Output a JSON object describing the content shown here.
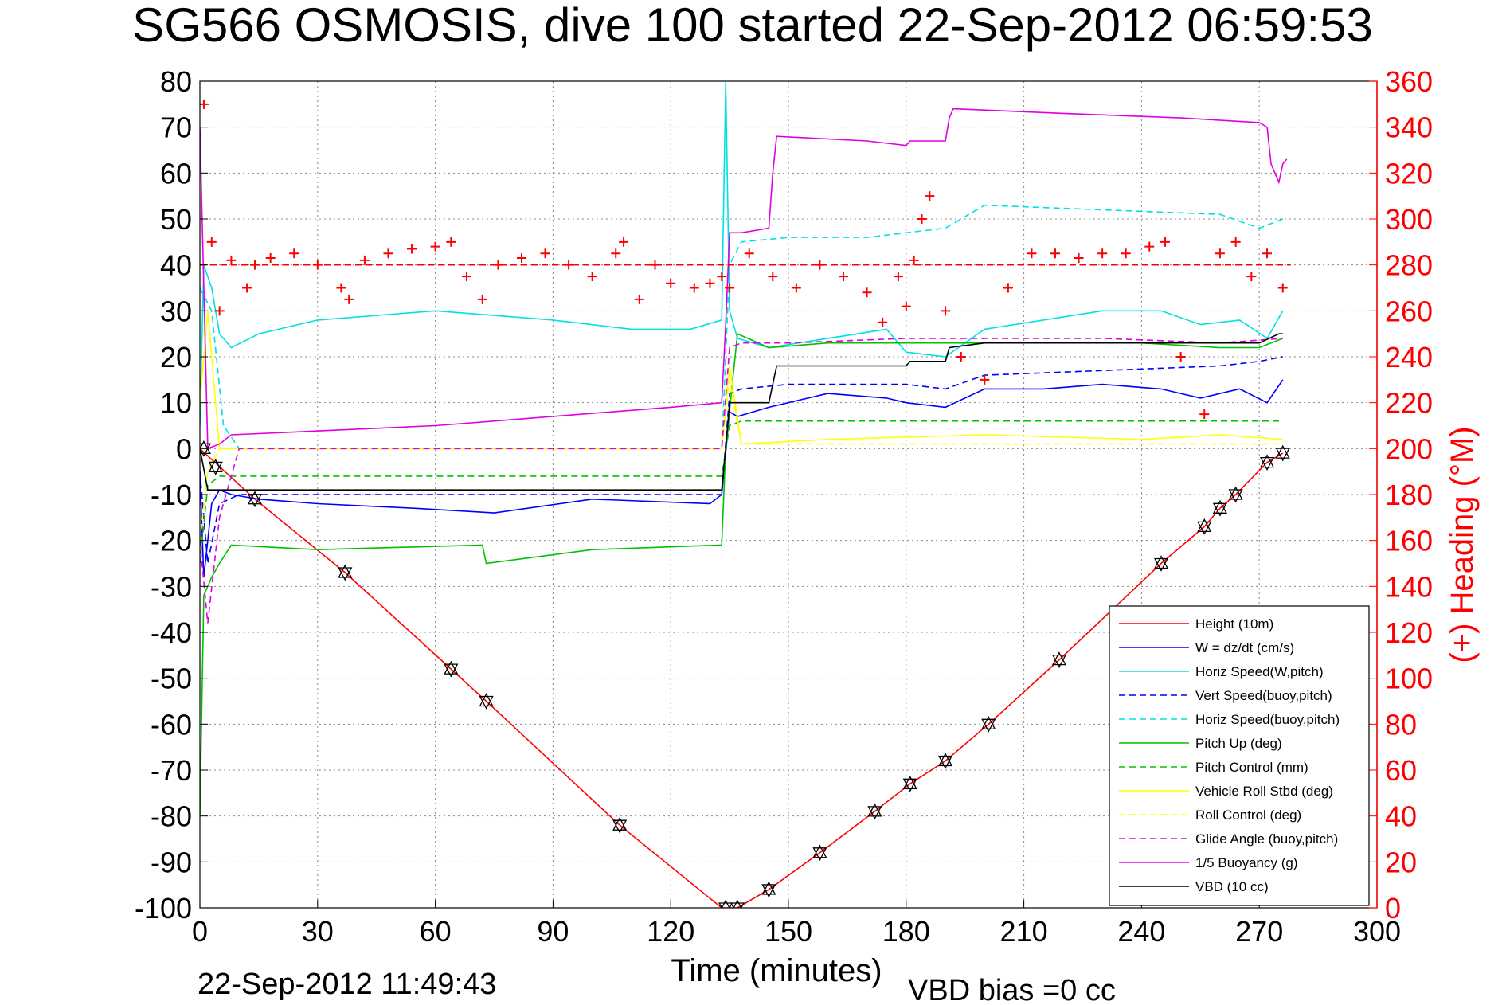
{
  "chart_data": {
    "type": "line",
    "title": "SG566 OSMOSIS, dive 100 started 22-Sep-2012 06:59:53",
    "xlabel": "Time (minutes)",
    "ylabel_right": "(+) Heading (°M)",
    "xlim": [
      0,
      300
    ],
    "ylim": [
      -100,
      80
    ],
    "ylim_right": [
      0,
      360
    ],
    "grid": true,
    "legend_position": "bottom-right",
    "x_ticks": [
      "0",
      "30",
      "60",
      "90",
      "120",
      "150",
      "180",
      "210",
      "240",
      "270",
      "300"
    ],
    "y_ticks": [
      "80",
      "70",
      "60",
      "50",
      "40",
      "30",
      "20",
      "10",
      "0",
      "-10",
      "-20",
      "-30",
      "-40",
      "-50",
      "-60",
      "-70",
      "-80",
      "-90",
      "-100"
    ],
    "y_ticks_right": [
      "360",
      "340",
      "320",
      "300",
      "280",
      "260",
      "240",
      "220",
      "200",
      "180",
      "160",
      "140",
      "120",
      "100",
      "80",
      "60",
      "40",
      "20",
      "0"
    ],
    "footer_left": "22-Sep-2012 11:49:43",
    "footer_right": "VBD bias =0 cc",
    "series": [
      {
        "name": "Height (10m)",
        "color": "#ff0000",
        "style": "solid",
        "x": [
          0,
          14,
          37,
          64,
          73,
          107,
          133,
          137,
          145,
          158,
          172,
          181,
          190,
          201,
          219,
          245,
          256,
          260,
          264,
          272,
          276
        ],
        "y": [
          0,
          -11,
          -27,
          -48,
          -55,
          -82,
          -100,
          -100,
          -96,
          -88,
          -79,
          -73,
          -68,
          -60,
          -46,
          -25,
          -17,
          -13,
          -10,
          -3,
          -1
        ]
      },
      {
        "name": "W = dz/dt (cm/s)",
        "color": "#0000ff",
        "style": "solid",
        "x": [
          0,
          1,
          2,
          3,
          5,
          8,
          15,
          30,
          55,
          75,
          100,
          130,
          133,
          135,
          137,
          145,
          160,
          175,
          180,
          190,
          200,
          215,
          230,
          245,
          255,
          265,
          272,
          276
        ],
        "y": [
          -5,
          -28,
          -20,
          -12,
          -9,
          -10,
          -11,
          -12,
          -13,
          -14,
          -11,
          -12,
          -10,
          8,
          7,
          9,
          12,
          11,
          10,
          9,
          13,
          13,
          14,
          13,
          11,
          13,
          10,
          15
        ]
      },
      {
        "name": "Horiz Speed(W,pitch)",
        "color": "#00e0e0",
        "style": "solid",
        "x": [
          0,
          1,
          3,
          5,
          8,
          15,
          30,
          60,
          90,
          110,
          125,
          133,
          134,
          135,
          137,
          145,
          160,
          175,
          180,
          190,
          200,
          215,
          230,
          245,
          255,
          265,
          272,
          276
        ],
        "y": [
          5,
          40,
          35,
          25,
          22,
          25,
          28,
          30,
          28,
          26,
          26,
          28,
          80,
          30,
          24,
          22,
          24,
          26,
          21,
          20,
          26,
          28,
          30,
          30,
          27,
          28,
          24,
          30
        ]
      },
      {
        "name": "Vert Speed(buoy,pitch)",
        "color": "#0000ff",
        "style": "dashed",
        "x": [
          0,
          2,
          5,
          10,
          133,
          135,
          138,
          150,
          180,
          190,
          200,
          230,
          260,
          270,
          276
        ],
        "y": [
          -5,
          -25,
          -12,
          -10,
          -10,
          12,
          13,
          14,
          14,
          13,
          16,
          17,
          18,
          19,
          20
        ]
      },
      {
        "name": "Horiz Speed(buoy,pitch)",
        "color": "#00e0e0",
        "style": "dashed",
        "x": [
          0,
          3,
          6,
          10,
          133,
          135,
          138,
          150,
          170,
          180,
          190,
          200,
          230,
          260,
          270,
          276
        ],
        "y": [
          35,
          30,
          5,
          0,
          0,
          40,
          45,
          46,
          46,
          47,
          48,
          53,
          52,
          51,
          48,
          50
        ]
      },
      {
        "name": "Pitch Up (deg)",
        "color": "#00c000",
        "style": "solid",
        "x": [
          0,
          1,
          3,
          5,
          8,
          30,
          72,
          73,
          100,
          133,
          134,
          137,
          145,
          160,
          180,
          190,
          220,
          240,
          260,
          270,
          276
        ],
        "y": [
          -80,
          -32,
          -28,
          -25,
          -21,
          -22,
          -21,
          -25,
          -22,
          -21,
          0,
          25,
          22,
          23,
          23,
          23,
          23,
          23,
          22,
          22,
          24
        ]
      },
      {
        "name": "Pitch Control (mm)",
        "color": "#00c000",
        "style": "dashed",
        "x": [
          0,
          2,
          5,
          20,
          60,
          80,
          133,
          135,
          138,
          160,
          180,
          200,
          230,
          260,
          276
        ],
        "y": [
          -25,
          -8,
          -6,
          -6,
          -6,
          -6,
          -6,
          5,
          6,
          6,
          6,
          6,
          6,
          6,
          6
        ]
      },
      {
        "name": "Vehicle Roll Stbd (deg)",
        "color": "#ffff00",
        "style": "solid",
        "x": [
          0,
          2,
          5,
          10,
          60,
          100,
          133,
          135,
          138,
          160,
          200,
          240,
          260,
          276
        ],
        "y": [
          10,
          30,
          0,
          0,
          0,
          0,
          0,
          18,
          1,
          2,
          3,
          2,
          3,
          2
        ]
      },
      {
        "name": "Roll Control (deg)",
        "color": "#ffff00",
        "style": "dashed",
        "x": [
          0,
          2,
          5,
          10,
          133,
          135,
          138,
          276
        ],
        "y": [
          -20,
          -5,
          0,
          0,
          0,
          15,
          1,
          1
        ]
      },
      {
        "name": "Glide Angle (buoy,pitch)",
        "color": "#e000e0",
        "style": "dashed",
        "x": [
          0,
          2,
          5,
          10,
          133,
          135,
          138,
          150,
          180,
          200,
          230,
          260,
          276
        ],
        "y": [
          -20,
          -38,
          -15,
          0,
          0,
          22,
          23,
          23,
          24,
          24,
          24,
          23,
          24
        ]
      },
      {
        "name": "1/5 Buoyancy (g)",
        "color": "#e000e0",
        "style": "solid",
        "x": [
          0,
          2,
          5,
          8,
          60,
          120,
          133,
          134,
          135,
          138,
          145,
          146,
          147,
          170,
          180,
          181,
          190,
          191,
          192,
          220,
          250,
          270,
          272,
          273,
          275,
          276,
          277
        ],
        "y": [
          70,
          0,
          1,
          3,
          5,
          9,
          10,
          27,
          47,
          47,
          48,
          60,
          68,
          67,
          66,
          67,
          67,
          72,
          74,
          73,
          72,
          71,
          70,
          62,
          58,
          62,
          63
        ]
      },
      {
        "name": "VBD (10 cc)",
        "color": "#000000",
        "style": "solid",
        "x": [
          0,
          2,
          5,
          20,
          100,
          133,
          134,
          135,
          137,
          145,
          147,
          160,
          180,
          181,
          190,
          191,
          200,
          250,
          270,
          275,
          276
        ],
        "y": [
          0,
          -9,
          -9,
          -9,
          -9,
          -9,
          0,
          10,
          10,
          10,
          18,
          18,
          18,
          19,
          19,
          22,
          23,
          23,
          23,
          25,
          25
        ]
      },
      {
        "name": "Heading",
        "color": "#ff0000",
        "style": "markers",
        "axis": "right",
        "x": [
          1,
          3,
          5,
          8,
          12,
          14,
          18,
          24,
          30,
          36,
          38,
          42,
          48,
          54,
          60,
          64,
          68,
          72,
          76,
          82,
          88,
          94,
          100,
          106,
          108,
          112,
          116,
          120,
          126,
          130,
          133,
          135,
          140,
          146,
          152,
          158,
          164,
          170,
          174,
          178,
          180,
          182,
          184,
          186,
          190,
          194,
          200,
          206,
          212,
          218,
          224,
          230,
          236,
          242,
          246,
          250,
          256,
          260,
          264,
          268,
          272,
          276
        ],
        "y": [
          350,
          290,
          260,
          282,
          270,
          280,
          283,
          285,
          280,
          270,
          265,
          282,
          285,
          287,
          288,
          290,
          275,
          265,
          280,
          283,
          285,
          280,
          275,
          285,
          290,
          265,
          280,
          272,
          270,
          272,
          275,
          270,
          285,
          275,
          270,
          280,
          275,
          268,
          255,
          275,
          262,
          282,
          300,
          310,
          260,
          240,
          230,
          270,
          285,
          285,
          283,
          285,
          285,
          288,
          290,
          240,
          215,
          285,
          290,
          275,
          285,
          270
        ]
      },
      {
        "name": "Heading target",
        "color": "#ff0000",
        "style": "dashed",
        "axis": "right",
        "x": [
          0,
          278
        ],
        "y": [
          280,
          280
        ]
      }
    ],
    "markers": {
      "name": "waypoints",
      "x": [
        1,
        4,
        14,
        37,
        64,
        73,
        107,
        134,
        137,
        145,
        158,
        172,
        181,
        190,
        201,
        219,
        245,
        256,
        260,
        264,
        272,
        276
      ],
      "y": [
        0,
        -4,
        -11,
        -27,
        -48,
        -55,
        -82,
        -100,
        -100,
        -96,
        -88,
        -79,
        -73,
        -68,
        -60,
        -46,
        -25,
        -17,
        -13,
        -10,
        -3,
        -1
      ]
    }
  }
}
